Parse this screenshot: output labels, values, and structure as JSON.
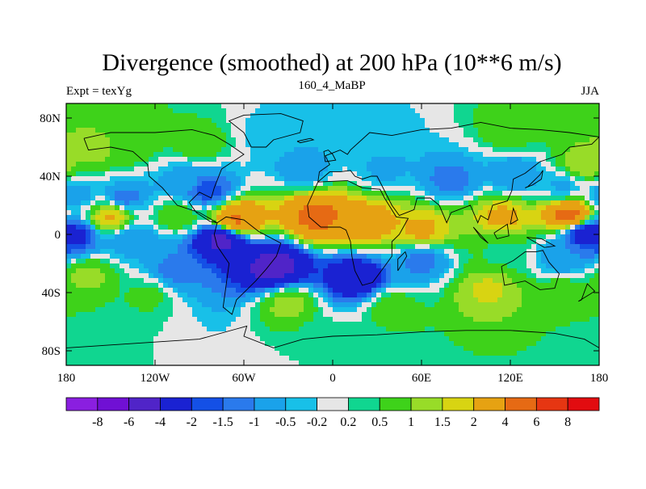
{
  "chart_data": {
    "type": "heatmap",
    "title": "Divergence (smoothed) at 200 hPa (10**6 m/s)",
    "subtitle_left": "Expt = texYg",
    "subtitle_center": "160_4_MaBP",
    "subtitle_right": "JJA",
    "xlabel": "",
    "ylabel": "",
    "xlim": [
      -180,
      180
    ],
    "ylim": [
      -90,
      90
    ],
    "x_ticks": [
      {
        "value": -180,
        "label": "180"
      },
      {
        "value": -120,
        "label": "120W"
      },
      {
        "value": -60,
        "label": "60W"
      },
      {
        "value": 0,
        "label": "0"
      },
      {
        "value": 60,
        "label": "60E"
      },
      {
        "value": 120,
        "label": "120E"
      },
      {
        "value": 180,
        "label": "180"
      }
    ],
    "y_ticks": [
      {
        "value": 80,
        "label": "80N"
      },
      {
        "value": 40,
        "label": "40N"
      },
      {
        "value": 0,
        "label": "0"
      },
      {
        "value": -40,
        "label": "40S"
      },
      {
        "value": -80,
        "label": "80S"
      }
    ],
    "colorbar": {
      "levels": [
        "-8",
        "-6",
        "-4",
        "-2",
        "-1.5",
        "-1",
        "-0.5",
        "-0.2",
        "0.2",
        "0.5",
        "1",
        "1.5",
        "2",
        "4",
        "6",
        "8"
      ],
      "colors": [
        "#8a1fe0",
        "#7010d4",
        "#5024c8",
        "#1a22d2",
        "#1450e6",
        "#2a7aec",
        "#1aa2ea",
        "#18c0e8",
        "#e6e6e6",
        "#10d690",
        "#3ed21a",
        "#98dc28",
        "#d8d412",
        "#e6a212",
        "#e66a14",
        "#e63612",
        "#e20c10"
      ]
    },
    "field_regions": [
      {
        "lon": -165,
        "lat": 58,
        "value": 1.2
      },
      {
        "lon": -140,
        "lat": 62,
        "value": 1.0
      },
      {
        "lon": -90,
        "lat": 62,
        "value": 0.8
      },
      {
        "lon": -40,
        "lat": 68,
        "value": -0.4
      },
      {
        "lon": 30,
        "lat": 68,
        "value": -0.4
      },
      {
        "lon": 120,
        "lat": 72,
        "value": 0.8
      },
      {
        "lon": 170,
        "lat": 48,
        "value": 1.4
      },
      {
        "lon": -100,
        "lat": 35,
        "value": -0.8
      },
      {
        "lon": -85,
        "lat": 30,
        "value": -1.8
      },
      {
        "lon": -20,
        "lat": 45,
        "value": -0.8
      },
      {
        "lon": 35,
        "lat": 45,
        "value": -0.6
      },
      {
        "lon": 80,
        "lat": 38,
        "value": -1.2
      },
      {
        "lon": 125,
        "lat": 40,
        "value": -1.0
      },
      {
        "lon": 155,
        "lat": 33,
        "value": -0.6
      },
      {
        "lon": -175,
        "lat": 27,
        "value": -0.8
      },
      {
        "lon": -140,
        "lat": 25,
        "value": -1.2
      },
      {
        "lon": -150,
        "lat": 12,
        "value": 2.2
      },
      {
        "lon": -105,
        "lat": 13,
        "value": 1.0
      },
      {
        "lon": -65,
        "lat": 10,
        "value": 4.2
      },
      {
        "lon": -10,
        "lat": 12,
        "value": 4.6
      },
      {
        "lon": 25,
        "lat": 8,
        "value": 2.6
      },
      {
        "lon": 60,
        "lat": 3,
        "value": 2.2
      },
      {
        "lon": 115,
        "lat": 12,
        "value": 2.2
      },
      {
        "lon": 160,
        "lat": 13,
        "value": 4.8
      },
      {
        "lon": -175,
        "lat": -1,
        "value": -2.4
      },
      {
        "lon": -135,
        "lat": -3,
        "value": -1.0
      },
      {
        "lon": -75,
        "lat": -4,
        "value": -4.4
      },
      {
        "lon": -105,
        "lat": -25,
        "value": -1.2
      },
      {
        "lon": -40,
        "lat": -22,
        "value": -4.8
      },
      {
        "lon": 15,
        "lat": -30,
        "value": -3.2
      },
      {
        "lon": 60,
        "lat": -18,
        "value": -1.2
      },
      {
        "lon": 115,
        "lat": -12,
        "value": 0.4
      },
      {
        "lon": 170,
        "lat": 1,
        "value": -2.8
      },
      {
        "lon": 155,
        "lat": -15,
        "value": -1.0
      },
      {
        "lon": -165,
        "lat": -28,
        "value": 1.2
      },
      {
        "lon": -125,
        "lat": -42,
        "value": 0.6
      },
      {
        "lon": -30,
        "lat": -48,
        "value": 1.2
      },
      {
        "lon": 40,
        "lat": -50,
        "value": 0.8
      },
      {
        "lon": 105,
        "lat": -38,
        "value": 1.6
      },
      {
        "lon": 155,
        "lat": -42,
        "value": 1.0
      },
      {
        "lon": -175,
        "lat": -75,
        "value": 0.5
      },
      {
        "lon": 0,
        "lat": -70,
        "value": 0.3
      },
      {
        "lon": 170,
        "lat": -73,
        "value": 0.4
      }
    ],
    "grid": false,
    "legend": "bottom",
    "projection": "cylindrical-equidistant",
    "coastlines": "present"
  }
}
